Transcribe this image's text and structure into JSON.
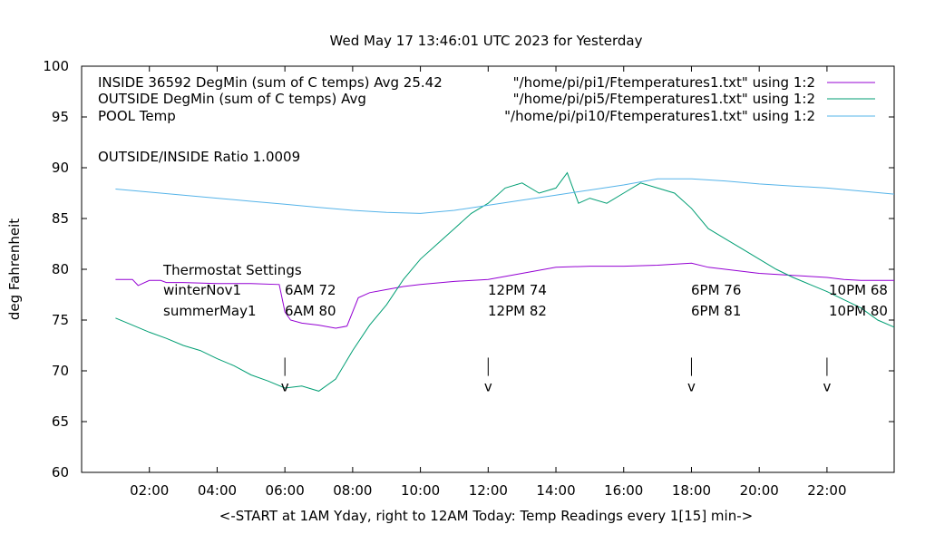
{
  "chart_data": {
    "type": "line",
    "title": "Wed May 17 13:46:01 UTC 2023 for Yesterday",
    "xlabel": "<-START at 1AM Yday, right to 12AM Today:  Temp Readings every 1[15] min->",
    "ylabel": "deg Fahrenheit",
    "xlim": [
      "00:00",
      "23:59"
    ],
    "ylim": [
      60,
      100
    ],
    "grid": false,
    "legend_position": "top",
    "x_ticks": [
      "02:00",
      "04:00",
      "06:00",
      "08:00",
      "10:00",
      "12:00",
      "14:00",
      "16:00",
      "18:00",
      "20:00",
      "22:00"
    ],
    "y_ticks": [
      60,
      65,
      70,
      75,
      80,
      85,
      90,
      95,
      100
    ],
    "annotations": {
      "inside_summary": "INSIDE 36592 DegMin (sum of C temps) Avg 25.42",
      "outside_summary": "OUTSIDE  DegMin (sum of C temps) Avg",
      "pool_label": "POOL Temp",
      "ratio": "OUTSIDE/INSIDE Ratio 1.0009",
      "thermostat_title": "Thermostat Settings",
      "schedules": [
        {
          "name": "winterNov1",
          "settings": [
            "6AM 72",
            "12PM 74",
            "6PM 76",
            "10PM 68"
          ]
        },
        {
          "name": "summerMay1",
          "settings": [
            "6AM 80",
            "12PM 82",
            "6PM 81",
            "10PM 80"
          ]
        }
      ],
      "markers": [
        {
          "time": "06:00",
          "glyph": "v"
        },
        {
          "time": "12:00",
          "glyph": "v"
        },
        {
          "time": "18:00",
          "glyph": "v"
        },
        {
          "time": "22:00",
          "glyph": "v"
        }
      ]
    },
    "series": [
      {
        "name": "\"/home/pi/pi1/Ftemperatures1.txt\" using 1:2",
        "color": "#9400d3",
        "x": [
          "01:00",
          "01:30",
          "01:40",
          "02:00",
          "02:20",
          "02:30",
          "03:00",
          "04:00",
          "05:00",
          "05:50",
          "06:00",
          "06:10",
          "06:30",
          "07:00",
          "07:30",
          "07:50",
          "08:10",
          "08:30",
          "09:00",
          "09:30",
          "10:00",
          "11:00",
          "12:00",
          "13:00",
          "14:00",
          "15:00",
          "16:00",
          "17:00",
          "18:00",
          "18:30",
          "19:00",
          "20:00",
          "21:00",
          "22:00",
          "22:30",
          "23:00",
          "23:59"
        ],
        "y": [
          79.0,
          79.0,
          78.4,
          78.9,
          78.9,
          78.7,
          78.7,
          78.6,
          78.6,
          78.5,
          75.8,
          75.0,
          74.7,
          74.5,
          74.2,
          74.4,
          77.2,
          77.7,
          78.0,
          78.3,
          78.5,
          78.8,
          79.0,
          79.6,
          80.2,
          80.3,
          80.3,
          80.4,
          80.6,
          80.2,
          80.0,
          79.6,
          79.4,
          79.2,
          79.0,
          78.9,
          78.9
        ]
      },
      {
        "name": "\"/home/pi/pi5/Ftemperatures1.txt\" using 1:2",
        "color": "#009e73",
        "x": [
          "01:00",
          "01:30",
          "02:00",
          "02:30",
          "03:00",
          "03:30",
          "04:00",
          "04:30",
          "05:00",
          "05:30",
          "06:00",
          "06:30",
          "07:00",
          "07:30",
          "08:00",
          "08:30",
          "09:00",
          "09:30",
          "10:00",
          "10:30",
          "11:00",
          "11:30",
          "12:00",
          "12:30",
          "13:00",
          "13:30",
          "14:00",
          "14:20",
          "14:40",
          "15:00",
          "15:30",
          "16:00",
          "16:30",
          "17:00",
          "17:30",
          "18:00",
          "18:30",
          "19:00",
          "19:30",
          "20:00",
          "20:30",
          "21:00",
          "21:30",
          "22:00",
          "22:30",
          "23:00",
          "23:30",
          "23:59"
        ],
        "y": [
          75.2,
          74.5,
          73.8,
          73.2,
          72.5,
          72.0,
          71.2,
          70.5,
          69.6,
          69.0,
          68.3,
          68.5,
          68.0,
          69.2,
          72.0,
          74.5,
          76.5,
          79.0,
          81.0,
          82.5,
          84.0,
          85.5,
          86.5,
          88.0,
          88.5,
          87.5,
          88.0,
          89.5,
          86.5,
          87.0,
          86.5,
          87.5,
          88.5,
          88.0,
          87.5,
          86.0,
          84.0,
          83.0,
          82.0,
          81.0,
          80.0,
          79.2,
          78.5,
          77.8,
          77.0,
          76.2,
          75.0,
          74.3
        ]
      },
      {
        "name": "\"/home/pi/pi10/Ftemperatures1.txt\" using 1:2",
        "color": "#56b4e9",
        "x": [
          "01:00",
          "02:00",
          "03:00",
          "04:00",
          "05:00",
          "06:00",
          "07:00",
          "08:00",
          "09:00",
          "10:00",
          "11:00",
          "12:00",
          "13:00",
          "14:00",
          "15:00",
          "16:00",
          "17:00",
          "18:00",
          "19:00",
          "20:00",
          "21:00",
          "22:00",
          "23:00",
          "23:59"
        ],
        "y": [
          87.9,
          87.6,
          87.3,
          87.0,
          86.7,
          86.4,
          86.1,
          85.8,
          85.6,
          85.5,
          85.8,
          86.3,
          86.8,
          87.3,
          87.8,
          88.3,
          88.9,
          88.9,
          88.7,
          88.4,
          88.2,
          88.0,
          87.7,
          87.4
        ]
      }
    ]
  }
}
